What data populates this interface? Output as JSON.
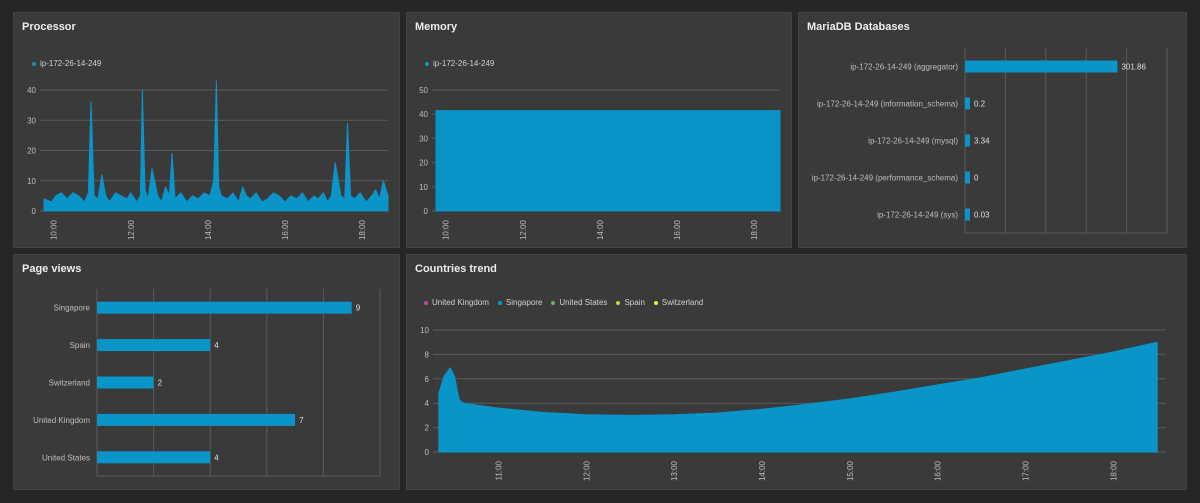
{
  "colors": {
    "series": "#0a95c9",
    "grid": "#5a5a5a",
    "axis_text": "#bdbdbd"
  },
  "panels": {
    "processor": {
      "title": "Processor",
      "legend": [
        {
          "label": "ip-172-26-14-249",
          "color": "#0a95c9"
        }
      ],
      "chart_data": {
        "type": "area",
        "series": [
          {
            "name": "ip-172-26-14-249"
          }
        ],
        "ylim": [
          0,
          40
        ],
        "yticks": [
          0,
          10,
          20,
          30,
          40
        ],
        "xlim": [
          9.75,
          18.67
        ],
        "xticks": [
          "10:00",
          "12:00",
          "14:00",
          "16:00",
          "18:00"
        ],
        "xtick_values": [
          10,
          12,
          14,
          16,
          18
        ],
        "x": [
          9.75,
          9.95,
          10.05,
          10.2,
          10.35,
          10.5,
          10.65,
          10.8,
          10.9,
          10.97,
          11.05,
          11.15,
          11.25,
          11.35,
          11.45,
          11.6,
          11.75,
          11.9,
          12.0,
          12.15,
          12.25,
          12.3,
          12.37,
          12.45,
          12.55,
          12.7,
          12.8,
          12.9,
          13.0,
          13.07,
          13.15,
          13.3,
          13.45,
          13.6,
          13.75,
          13.9,
          14.05,
          14.15,
          14.22,
          14.28,
          14.35,
          14.5,
          14.65,
          14.8,
          14.9,
          15.0,
          15.1,
          15.25,
          15.4,
          15.55,
          15.7,
          15.85,
          16.0,
          16.15,
          16.3,
          16.45,
          16.6,
          16.75,
          16.85,
          17.0,
          17.1,
          17.2,
          17.3,
          17.45,
          17.55,
          17.62,
          17.7,
          17.8,
          17.95,
          18.1,
          18.25,
          18.35,
          18.45,
          18.55,
          18.67
        ],
        "y": [
          4,
          3,
          5,
          6,
          4,
          6,
          5,
          3,
          6,
          36,
          5,
          4,
          12,
          5,
          3,
          6,
          5,
          4,
          6,
          3,
          5,
          40,
          7,
          4,
          14,
          5,
          3,
          8,
          5,
          19,
          4,
          6,
          3,
          5,
          4,
          6,
          5,
          10,
          43,
          8,
          5,
          4,
          6,
          3,
          8,
          5,
          4,
          6,
          3,
          4,
          6,
          5,
          3,
          5,
          4,
          6,
          3,
          5,
          4,
          6,
          3,
          5,
          16,
          5,
          4,
          29,
          5,
          4,
          6,
          3,
          5,
          7,
          4,
          10,
          5
        ]
      }
    },
    "memory": {
      "title": "Memory",
      "legend": [
        {
          "label": "ip-172-26-14-249",
          "color": "#0a95c9"
        }
      ],
      "chart_data": {
        "type": "area",
        "series": [
          {
            "name": "ip-172-26-14-249"
          }
        ],
        "ylim": [
          0,
          50
        ],
        "yticks": [
          0,
          10,
          20,
          30,
          40,
          50
        ],
        "xlim": [
          9.75,
          18.67
        ],
        "xticks": [
          "10:00",
          "12:00",
          "14:00",
          "16:00",
          "18:00"
        ],
        "xtick_values": [
          10,
          12,
          14,
          16,
          18
        ],
        "x": [
          9.75,
          18.67
        ],
        "y": [
          41.5,
          41.5
        ]
      }
    },
    "mariadb": {
      "title": "MariaDB Databases",
      "chart_data": {
        "type": "bar",
        "orientation": "horizontal",
        "categories": [
          "ip-172-26-14-249 (aggregator)",
          "ip-172-26-14-249 (information_schema)",
          "ip-172-26-14-249 (mysql)",
          "ip-172-26-14-249 (performance_schema)",
          "ip-172-26-14-249 (sys)"
        ],
        "values": [
          301.86,
          0.2,
          3.34,
          0,
          0.03
        ],
        "value_labels": [
          "301.86",
          "0.2",
          "3.34",
          "0",
          "0.03"
        ],
        "xlim": [
          0,
          400
        ],
        "grid_values": [
          0,
          80,
          160,
          240,
          320,
          400
        ]
      }
    },
    "pageviews": {
      "title": "Page views",
      "chart_data": {
        "type": "bar",
        "orientation": "horizontal",
        "categories": [
          "Singapore",
          "Spain",
          "Switzerland",
          "United Kingdom",
          "United States"
        ],
        "values": [
          9,
          4,
          2,
          7,
          4
        ],
        "value_labels": [
          "9",
          "4",
          "2",
          "7",
          "4"
        ],
        "xlim": [
          0,
          10
        ],
        "grid_values": [
          0,
          2,
          4,
          6,
          8,
          10
        ]
      }
    },
    "countries": {
      "title": "Countries trend",
      "legend": [
        {
          "label": "United Kingdom",
          "color": "#c0449c"
        },
        {
          "label": "Singapore",
          "color": "#0a95c9"
        },
        {
          "label": "United States",
          "color": "#5cb85c"
        },
        {
          "label": "Spain",
          "color": "#b7d84b"
        },
        {
          "label": "Switzerland",
          "color": "#f2e94e"
        }
      ],
      "chart_data": {
        "type": "area",
        "series": [
          {
            "name": "Singapore"
          }
        ],
        "ylim": [
          0,
          10
        ],
        "yticks": [
          0,
          2,
          4,
          6,
          8,
          10
        ],
        "xlim": [
          10.3,
          18.6
        ],
        "xticks": [
          "11:00",
          "12:00",
          "13:00",
          "14:00",
          "15:00",
          "16:00",
          "17:00",
          "18:00"
        ],
        "xtick_values": [
          11,
          12,
          13,
          14,
          15,
          16,
          17,
          18
        ],
        "x": [
          10.32,
          10.38,
          10.45,
          10.5,
          10.55,
          10.6,
          11.0,
          11.5,
          12.0,
          12.5,
          13.0,
          13.5,
          14.0,
          14.5,
          15.0,
          15.5,
          16.0,
          16.5,
          17.0,
          17.5,
          18.0,
          18.5
        ],
        "y": [
          4.8,
          6.2,
          6.9,
          6.2,
          4.3,
          4.0,
          3.6,
          3.25,
          3.05,
          3.0,
          3.05,
          3.2,
          3.5,
          3.9,
          4.35,
          4.9,
          5.5,
          6.1,
          6.8,
          7.5,
          8.2,
          9.0
        ]
      }
    }
  }
}
